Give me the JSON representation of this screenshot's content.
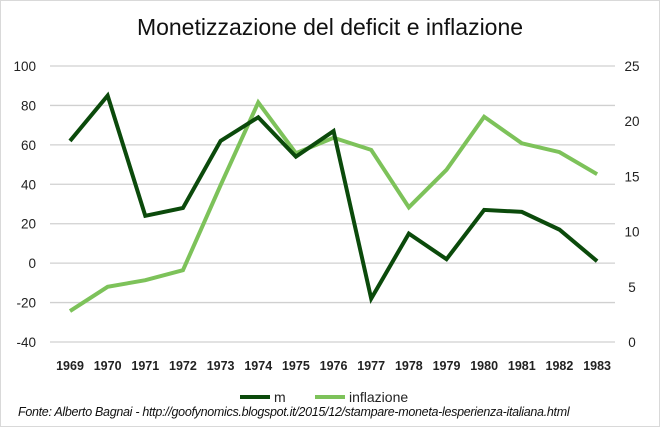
{
  "chart_data": {
    "type": "line",
    "title": "Monetizzazione del deficit e inflazione",
    "x": [
      "1969",
      "1970",
      "1971",
      "1972",
      "1973",
      "1974",
      "1975",
      "1976",
      "1977",
      "1978",
      "1979",
      "1980",
      "1981",
      "1982",
      "1983"
    ],
    "series": [
      {
        "name": "m",
        "axis": "left",
        "color": "#0b4a0b",
        "values": [
          62,
          85,
          24,
          28,
          62,
          74,
          54,
          67,
          -18,
          15,
          2,
          27,
          26,
          17,
          1
        ]
      },
      {
        "name": "inflazione",
        "axis": "right",
        "color": "#7dc25a",
        "values": [
          2.8,
          5.0,
          5.6,
          6.5,
          14.2,
          21.7,
          17.1,
          18.5,
          17.4,
          12.2,
          15.6,
          20.4,
          18.0,
          17.2,
          15.2
        ]
      }
    ],
    "y_left": {
      "min": -40,
      "max": 100,
      "ticks": [
        "-40",
        "-20",
        "0",
        "20",
        "40",
        "60",
        "80",
        "100"
      ]
    },
    "y_right": {
      "min": 0,
      "max": 25,
      "ticks": [
        "0",
        "5",
        "10",
        "15",
        "20",
        "25"
      ]
    },
    "grid": true,
    "legend": "bottom",
    "source": "Fonte: Alberto Bagnai - http://goofynomics.blogspot.it/2015/12/stampare-moneta-lesperienza-italiana.html"
  }
}
